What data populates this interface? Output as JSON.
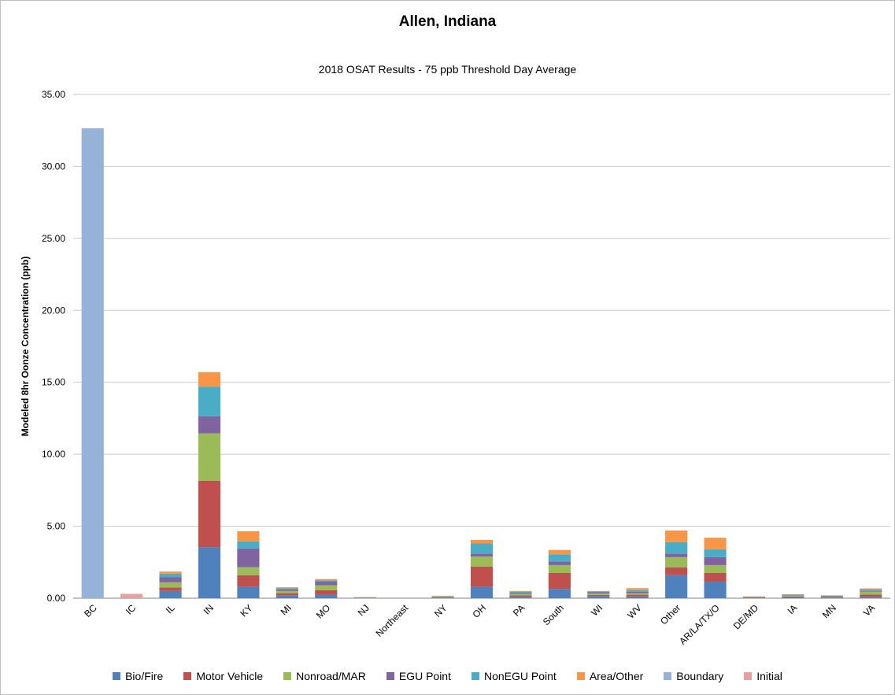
{
  "chart_data": {
    "type": "bar",
    "stacked": true,
    "title": "Allen, Indiana",
    "subtitle": "2018 OSAT Results - 75 ppb Threshold Day Average",
    "xlabel": "",
    "ylabel": "Modeled 8hr Oonze Concentration (ppb)",
    "ylim": [
      0,
      35
    ],
    "yticks": [
      "0.00",
      "5.00",
      "10.00",
      "15.00",
      "20.00",
      "25.00",
      "30.00",
      "35.00"
    ],
    "grid": true,
    "legend_position": "bottom",
    "categories": [
      "BC",
      "IC",
      "IL",
      "IN",
      "KY",
      "MI",
      "MO",
      "NJ",
      "Northeast",
      "NY",
      "OH",
      "PA",
      "South",
      "WI",
      "WV",
      "Other",
      "AR/LA/TX/O",
      "DE/MD",
      "IA",
      "MN",
      "VA"
    ],
    "series": [
      {
        "name": "Bio/Fire",
        "color": "#4f81bd",
        "values": [
          0,
          0,
          0.5,
          3.55,
          0.8,
          0.2,
          0.25,
          0.02,
          0,
          0.04,
          0.8,
          0.1,
          0.65,
          0.15,
          0.12,
          1.6,
          1.15,
          0.03,
          0.06,
          0.05,
          0.1
        ]
      },
      {
        "name": "Motor Vehicle",
        "color": "#c0504d",
        "values": [
          0,
          0,
          0.25,
          4.6,
          0.8,
          0.15,
          0.3,
          0.01,
          0,
          0.02,
          1.4,
          0.1,
          1.1,
          0.08,
          0.12,
          0.55,
          0.6,
          0.02,
          0.05,
          0.03,
          0.15
        ]
      },
      {
        "name": "Nonroad/MAR",
        "color": "#9bbb59",
        "values": [
          0,
          0,
          0.35,
          3.3,
          0.55,
          0.15,
          0.35,
          0.01,
          0,
          0.04,
          0.7,
          0.1,
          0.55,
          0.1,
          0.1,
          0.7,
          0.55,
          0.02,
          0.06,
          0.03,
          0.2
        ]
      },
      {
        "name": "EGU Point",
        "color": "#8064a2",
        "values": [
          0,
          0,
          0.35,
          1.2,
          1.3,
          0.1,
          0.25,
          0.01,
          0,
          0.02,
          0.2,
          0.06,
          0.25,
          0.08,
          0.1,
          0.25,
          0.55,
          0.02,
          0.03,
          0.03,
          0.05
        ]
      },
      {
        "name": "NonEGU Point",
        "color": "#4bacc6",
        "values": [
          0,
          0,
          0.25,
          2.05,
          0.5,
          0.1,
          0.1,
          0.01,
          0,
          0.03,
          0.7,
          0.08,
          0.5,
          0.06,
          0.12,
          0.8,
          0.55,
          0.02,
          0.05,
          0.04,
          0.1
        ]
      },
      {
        "name": "Area/Other",
        "color": "#f79646",
        "values": [
          0,
          0,
          0.15,
          1.0,
          0.7,
          0.06,
          0.08,
          0.01,
          0,
          0.02,
          0.25,
          0.06,
          0.3,
          0.03,
          0.14,
          0.8,
          0.8,
          0.01,
          0.02,
          0.02,
          0.08
        ]
      },
      {
        "name": "Boundary",
        "color": "#95b3d7",
        "values": [
          32.65,
          0,
          0,
          0,
          0,
          0,
          0,
          0,
          0,
          0,
          0,
          0,
          0,
          0,
          0,
          0,
          0,
          0,
          0,
          0,
          0
        ]
      },
      {
        "name": "Initial",
        "color": "#e6a0a0",
        "values": [
          0,
          0.3,
          0,
          0,
          0,
          0,
          0,
          0,
          0,
          0,
          0,
          0,
          0,
          0,
          0,
          0,
          0,
          0,
          0,
          0,
          0
        ]
      }
    ]
  }
}
